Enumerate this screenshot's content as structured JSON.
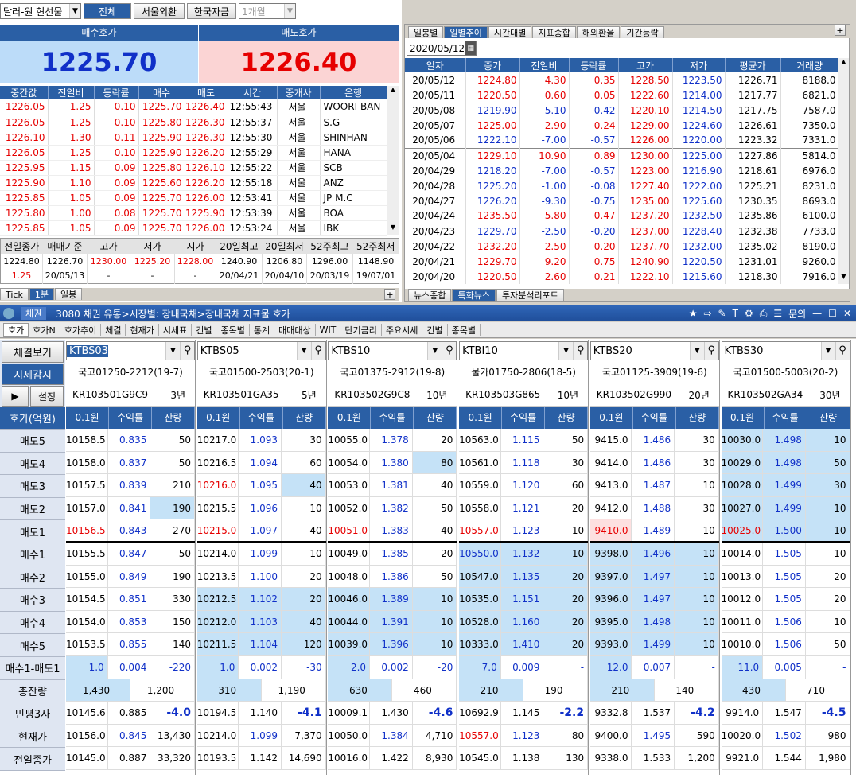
{
  "top": {
    "currency_select": "달러-원 현선물",
    "tabs": [
      "전체",
      "서울외환",
      "한국자금"
    ],
    "period_select": "1개월"
  },
  "quote": {
    "bid_label": "매수호가",
    "ask_label": "매도호가",
    "bid": "1225.70",
    "ask": "1226.40"
  },
  "tick": {
    "headers": [
      "중간값",
      "전일비",
      "등락률",
      "매수",
      "매도",
      "시간",
      "중개사",
      "은행"
    ],
    "rows": [
      [
        "1226.05",
        "1.25",
        "0.10",
        "1225.70",
        "1226.40",
        "12:55:43",
        "서울",
        "WOORI BAN"
      ],
      [
        "1226.05",
        "1.25",
        "0.10",
        "1225.80",
        "1226.30",
        "12:55:37",
        "서울",
        "S.G"
      ],
      [
        "1226.10",
        "1.30",
        "0.11",
        "1225.90",
        "1226.30",
        "12:55:30",
        "서울",
        "SHINHAN"
      ],
      [
        "1226.05",
        "1.25",
        "0.10",
        "1225.90",
        "1226.20",
        "12:55:29",
        "서울",
        "HANA"
      ],
      [
        "1225.95",
        "1.15",
        "0.09",
        "1225.80",
        "1226.10",
        "12:55:22",
        "서울",
        "SCB"
      ],
      [
        "1225.90",
        "1.10",
        "0.09",
        "1225.60",
        "1226.20",
        "12:55:18",
        "서울",
        "ANZ"
      ],
      [
        "1225.85",
        "1.05",
        "0.09",
        "1225.70",
        "1226.00",
        "12:53:41",
        "서울",
        "JP M.C"
      ],
      [
        "1225.80",
        "1.00",
        "0.08",
        "1225.70",
        "1225.90",
        "12:53:39",
        "서울",
        "BOA"
      ],
      [
        "1225.85",
        "1.05",
        "0.09",
        "1225.70",
        "1226.00",
        "12:53:24",
        "서울",
        "IBK"
      ]
    ]
  },
  "summary": {
    "headers": [
      "전일종가",
      "매매기준",
      "고가",
      "저가",
      "시가",
      "20일최고",
      "20일최저",
      "52주최고",
      "52주최저"
    ],
    "row1": [
      "1224.80",
      "1226.70",
      "1230.00",
      "1225.20",
      "1228.00",
      "1240.90",
      "1206.80",
      "1296.00",
      "1148.90"
    ],
    "row2": [
      "1.25",
      "20/05/13",
      "-",
      "-",
      "-",
      "20/04/21",
      "20/04/10",
      "20/03/19",
      "19/07/01"
    ]
  },
  "left_tabs": [
    "Tick",
    "1분",
    "일봉"
  ],
  "daily": {
    "tabs": [
      "일봉별",
      "일별추이",
      "시간대별",
      "지표종합",
      "해외환율",
      "기간등락"
    ],
    "date": "2020/05/12",
    "headers": [
      "일자",
      "종가",
      "전일비",
      "등락률",
      "고가",
      "저가",
      "평균가",
      "거래량"
    ],
    "rows": [
      [
        "20/05/12",
        "1224.80",
        "4.30",
        "0.35",
        "1228.50",
        "1223.50",
        "1226.71",
        "8188.0"
      ],
      [
        "20/05/11",
        "1220.50",
        "0.60",
        "0.05",
        "1222.60",
        "1214.00",
        "1217.77",
        "6821.0"
      ],
      [
        "20/05/08",
        "1219.90",
        "-5.10",
        "-0.42",
        "1220.10",
        "1214.50",
        "1217.75",
        "7587.0"
      ],
      [
        "20/05/07",
        "1225.00",
        "2.90",
        "0.24",
        "1229.00",
        "1224.60",
        "1226.61",
        "7350.0"
      ],
      [
        "20/05/06",
        "1222.10",
        "-7.00",
        "-0.57",
        "1226.00",
        "1220.00",
        "1223.32",
        "7331.0"
      ],
      [
        "20/05/04",
        "1229.10",
        "10.90",
        "0.89",
        "1230.00",
        "1225.00",
        "1227.86",
        "5814.0"
      ],
      [
        "20/04/29",
        "1218.20",
        "-7.00",
        "-0.57",
        "1223.00",
        "1216.90",
        "1218.61",
        "6976.0"
      ],
      [
        "20/04/28",
        "1225.20",
        "-1.00",
        "-0.08",
        "1227.40",
        "1222.00",
        "1225.21",
        "8231.0"
      ],
      [
        "20/04/27",
        "1226.20",
        "-9.30",
        "-0.75",
        "1235.00",
        "1225.60",
        "1230.35",
        "8693.0"
      ],
      [
        "20/04/24",
        "1235.50",
        "5.80",
        "0.47",
        "1237.20",
        "1232.50",
        "1235.86",
        "6100.0"
      ],
      [
        "20/04/23",
        "1229.70",
        "-2.50",
        "-0.20",
        "1237.00",
        "1228.40",
        "1232.38",
        "7733.0"
      ],
      [
        "20/04/22",
        "1232.20",
        "2.50",
        "0.20",
        "1237.70",
        "1232.00",
        "1235.02",
        "8190.0"
      ],
      [
        "20/04/21",
        "1229.70",
        "9.20",
        "0.75",
        "1240.90",
        "1220.50",
        "1231.01",
        "9260.0"
      ],
      [
        "20/04/20",
        "1220.50",
        "2.60",
        "0.21",
        "1222.10",
        "1215.60",
        "1218.30",
        "7916.0"
      ]
    ],
    "bottom_tabs": [
      "뉴스종합",
      "특화뉴스",
      "투자분석리포트"
    ]
  },
  "window": {
    "badge": "채권",
    "title": "3080 채권 유통>시장별: 장내국채>장내국채 지표물 호가",
    "help": "문의"
  },
  "subtabs": [
    "호가",
    "호가N",
    "호가추이",
    "체결",
    "현재가",
    "시세표",
    "건별",
    "종목별",
    "통계",
    "매매대상",
    "WIT",
    "단기금리",
    "주요시세",
    "건별",
    "종목별"
  ],
  "bond": {
    "btn_trade": "체결보기",
    "btn_price": "시세감시",
    "btn_setting": "설정",
    "labels": [
      "호가(억원)",
      "매도5",
      "매도4",
      "매도3",
      "매도2",
      "매도1",
      "매수1",
      "매수2",
      "매수3",
      "매수4",
      "매수5",
      "매수1-매도1",
      "총잔량",
      "민평3사",
      "현재가",
      "전일종가"
    ],
    "col_headers": [
      "0.1원",
      "수익률",
      "잔량"
    ],
    "panels": [
      {
        "code": "KTBS03",
        "name": "국고01250-2212(19-7)",
        "isin": "KR103501G9C9",
        "term": "3년",
        "rows": [
          [
            "10158.5",
            "0.835",
            "50"
          ],
          [
            "10158.0",
            "0.837",
            "50"
          ],
          [
            "10157.5",
            "0.839",
            "210"
          ],
          [
            "10157.0",
            "0.841",
            "190"
          ],
          [
            "10156.5",
            "0.843",
            "270"
          ],
          [
            "10155.5",
            "0.847",
            "50"
          ],
          [
            "10155.0",
            "0.849",
            "190"
          ],
          [
            "10154.5",
            "0.851",
            "330"
          ],
          [
            "10154.0",
            "0.853",
            "150"
          ],
          [
            "10153.5",
            "0.855",
            "140"
          ],
          [
            "1.0",
            "0.004",
            "-220"
          ]
        ],
        "total": [
          "1,430",
          "1,200"
        ],
        "minpyung": [
          "10145.6",
          "0.885",
          "-4.0"
        ],
        "current": [
          "10156.0",
          "0.845",
          "13,430"
        ],
        "prev": [
          "10145.0",
          "0.887",
          "33,320"
        ]
      },
      {
        "code": "KTBS05",
        "name": "국고01500-2503(20-1)",
        "isin": "KR103501GA35",
        "term": "5년",
        "rows": [
          [
            "10217.0",
            "1.093",
            "30"
          ],
          [
            "10216.5",
            "1.094",
            "60"
          ],
          [
            "10216.0",
            "1.095",
            "40"
          ],
          [
            "10215.5",
            "1.096",
            "10"
          ],
          [
            "10215.0",
            "1.097",
            "40"
          ],
          [
            "10214.0",
            "1.099",
            "10"
          ],
          [
            "10213.5",
            "1.100",
            "20"
          ],
          [
            "10212.5",
            "1.102",
            "20"
          ],
          [
            "10212.0",
            "1.103",
            "40"
          ],
          [
            "10211.5",
            "1.104",
            "120"
          ],
          [
            "1.0",
            "0.002",
            "-30"
          ]
        ],
        "total": [
          "310",
          "1,190"
        ],
        "minpyung": [
          "10194.5",
          "1.140",
          "-4.1"
        ],
        "current": [
          "10214.0",
          "1.099",
          "7,370"
        ],
        "prev": [
          "10193.5",
          "1.142",
          "14,690"
        ]
      },
      {
        "code": "KTBS10",
        "name": "국고01375-2912(19-8)",
        "isin": "KR103502G9C8",
        "term": "10년",
        "rows": [
          [
            "10055.0",
            "1.378",
            "20"
          ],
          [
            "10054.0",
            "1.380",
            "80"
          ],
          [
            "10053.0",
            "1.381",
            "40"
          ],
          [
            "10052.0",
            "1.382",
            "50"
          ],
          [
            "10051.0",
            "1.383",
            "40"
          ],
          [
            "10049.0",
            "1.385",
            "20"
          ],
          [
            "10048.0",
            "1.386",
            "50"
          ],
          [
            "10046.0",
            "1.389",
            "10"
          ],
          [
            "10044.0",
            "1.391",
            "10"
          ],
          [
            "10039.0",
            "1.396",
            "10"
          ],
          [
            "2.0",
            "0.002",
            "-20"
          ]
        ],
        "total": [
          "630",
          "460"
        ],
        "minpyung": [
          "10009.1",
          "1.430",
          "-4.6"
        ],
        "current": [
          "10050.0",
          "1.384",
          "4,710"
        ],
        "prev": [
          "10016.0",
          "1.422",
          "8,930"
        ]
      },
      {
        "code": "KTBI10",
        "name": "물가01750-2806(18-5)",
        "isin": "KR103503G865",
        "term": "10년",
        "rows": [
          [
            "10563.0",
            "1.115",
            "50"
          ],
          [
            "10561.0",
            "1.118",
            "30"
          ],
          [
            "10559.0",
            "1.120",
            "60"
          ],
          [
            "10558.0",
            "1.121",
            "20"
          ],
          [
            "10557.0",
            "1.123",
            "10"
          ],
          [
            "10550.0",
            "1.132",
            "10"
          ],
          [
            "10547.0",
            "1.135",
            "20"
          ],
          [
            "10535.0",
            "1.151",
            "20"
          ],
          [
            "10528.0",
            "1.160",
            "20"
          ],
          [
            "10333.0",
            "1.410",
            "20"
          ],
          [
            "7.0",
            "0.009",
            "-"
          ]
        ],
        "total": [
          "210",
          "190"
        ],
        "minpyung": [
          "10692.9",
          "1.145",
          "-2.2"
        ],
        "current": [
          "10557.0",
          "1.123",
          "80"
        ],
        "prev": [
          "10545.0",
          "1.138",
          "130"
        ]
      },
      {
        "code": "KTBS20",
        "name": "국고01125-3909(19-6)",
        "isin": "KR103502G990",
        "term": "20년",
        "rows": [
          [
            "9415.0",
            "1.486",
            "30"
          ],
          [
            "9414.0",
            "1.486",
            "30"
          ],
          [
            "9413.0",
            "1.487",
            "10"
          ],
          [
            "9412.0",
            "1.488",
            "30"
          ],
          [
            "9410.0",
            "1.489",
            "10"
          ],
          [
            "9398.0",
            "1.496",
            "10"
          ],
          [
            "9397.0",
            "1.497",
            "10"
          ],
          [
            "9396.0",
            "1.497",
            "10"
          ],
          [
            "9395.0",
            "1.498",
            "10"
          ],
          [
            "9393.0",
            "1.499",
            "10"
          ],
          [
            "12.0",
            "0.007",
            "-"
          ]
        ],
        "total": [
          "210",
          "140"
        ],
        "minpyung": [
          "9332.8",
          "1.537",
          "-4.2"
        ],
        "current": [
          "9400.0",
          "1.495",
          "590"
        ],
        "prev": [
          "9338.0",
          "1.533",
          "1,200"
        ]
      },
      {
        "code": "KTBS30",
        "name": "국고01500-5003(20-2)",
        "isin": "KR103502GA34",
        "term": "30년",
        "rows": [
          [
            "10030.0",
            "1.498",
            "10"
          ],
          [
            "10029.0",
            "1.498",
            "50"
          ],
          [
            "10028.0",
            "1.499",
            "30"
          ],
          [
            "10027.0",
            "1.499",
            "10"
          ],
          [
            "10025.0",
            "1.500",
            "10"
          ],
          [
            "10014.0",
            "1.505",
            "10"
          ],
          [
            "10013.0",
            "1.505",
            "20"
          ],
          [
            "10012.0",
            "1.505",
            "20"
          ],
          [
            "10011.0",
            "1.506",
            "10"
          ],
          [
            "10010.0",
            "1.506",
            "50"
          ],
          [
            "11.0",
            "0.005",
            "-"
          ]
        ],
        "total": [
          "430",
          "710"
        ],
        "minpyung": [
          "9914.0",
          "1.547",
          "-4.5"
        ],
        "current": [
          "10020.0",
          "1.502",
          "980"
        ],
        "prev": [
          "9921.0",
          "1.544",
          "1,980"
        ]
      }
    ]
  }
}
